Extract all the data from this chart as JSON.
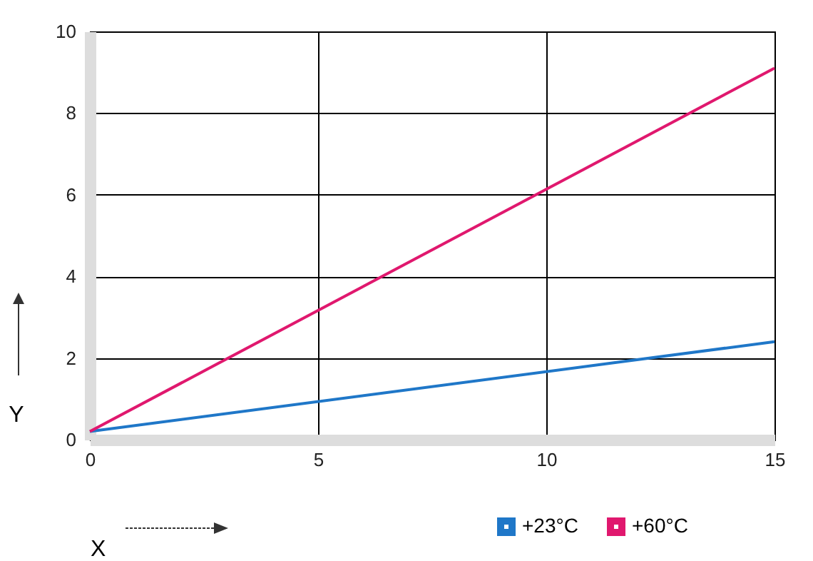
{
  "chart_data": {
    "type": "line",
    "xlabel": "X",
    "ylabel": "Y",
    "x": [
      0,
      15
    ],
    "series": [
      {
        "name": "+23°C",
        "color": "#1f77c8",
        "values": [
          0.2,
          2.4
        ]
      },
      {
        "name": "+60°C",
        "color": "#e0186e",
        "values": [
          0.2,
          9.1
        ]
      }
    ],
    "xlim": [
      0,
      15
    ],
    "xticks": [
      0,
      5,
      10,
      15
    ],
    "ylim": [
      0,
      10
    ],
    "yticks": [
      0,
      2,
      4,
      6,
      8,
      10
    ],
    "grid": true,
    "legend": "bottom right",
    "marker": "none",
    "line_style": "solid"
  }
}
